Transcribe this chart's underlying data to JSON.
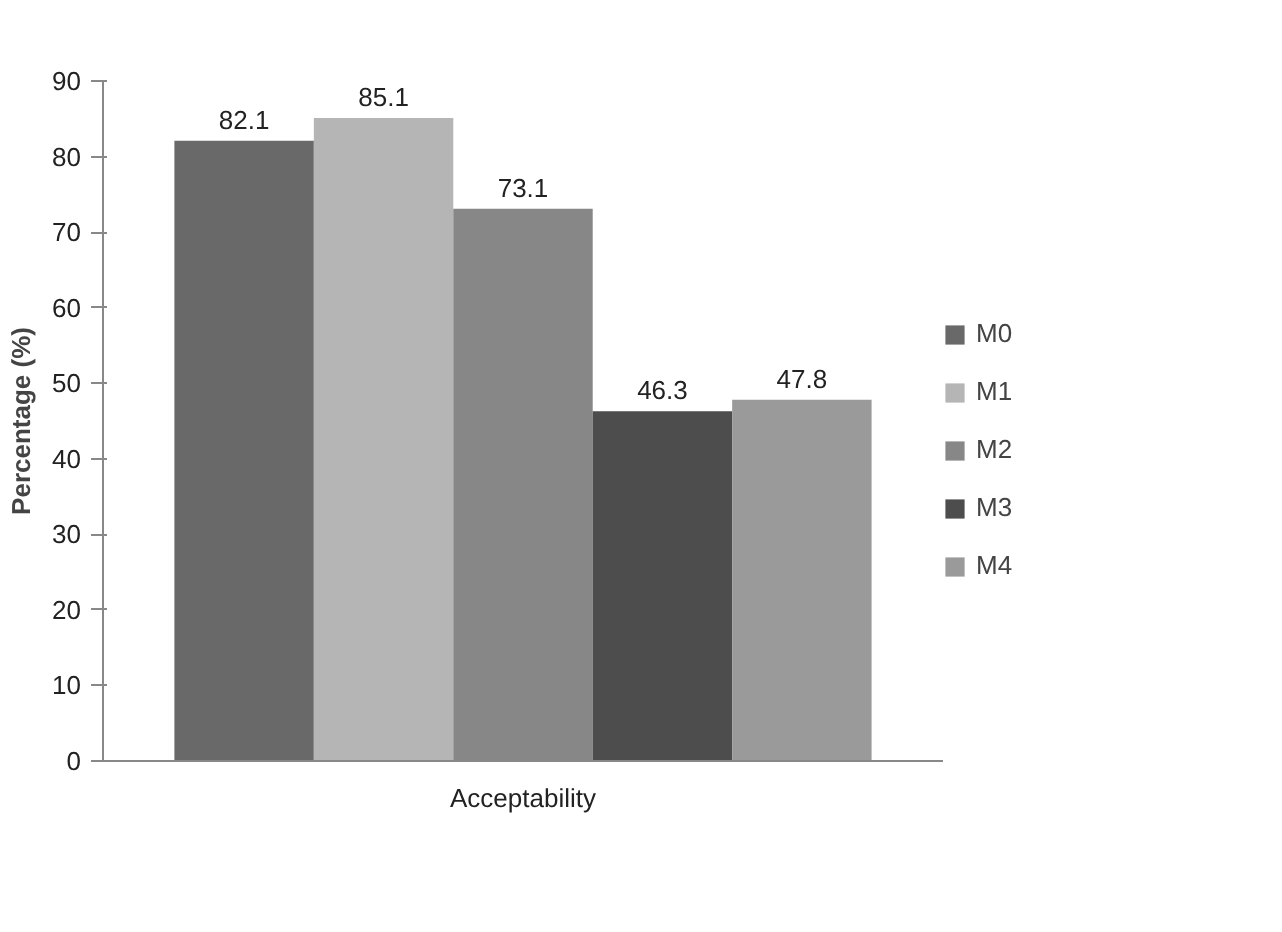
{
  "chart_data": {
    "type": "bar",
    "categories": [
      "Acceptability"
    ],
    "ylabel": "Percentage (%)",
    "ylim": [
      0,
      90
    ],
    "yticks": [
      0,
      10,
      20,
      30,
      40,
      50,
      60,
      70,
      80,
      90
    ],
    "grid": false,
    "legend": "right",
    "data_labels": true,
    "series": [
      {
        "name": "M0",
        "color": "#696969",
        "values": [
          82.1
        ]
      },
      {
        "name": "M1",
        "color": "#b5b5b5",
        "values": [
          85.1
        ]
      },
      {
        "name": "M2",
        "color": "#878787",
        "values": [
          73.1
        ]
      },
      {
        "name": "M3",
        "color": "#4d4d4d",
        "values": [
          46.3
        ]
      },
      {
        "name": "M4",
        "color": "#9a9a9a",
        "values": [
          47.8
        ]
      }
    ]
  }
}
